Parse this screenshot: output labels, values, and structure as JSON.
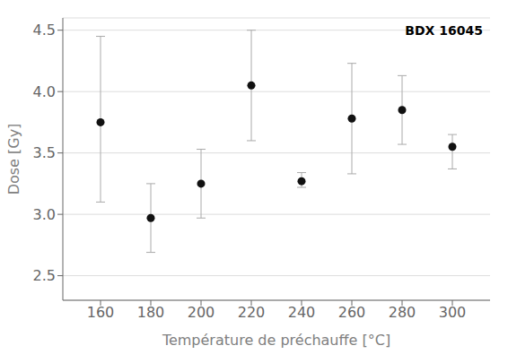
{
  "chart_data": {
    "type": "scatter",
    "x": [
      160,
      180,
      200,
      220,
      240,
      260,
      280,
      300
    ],
    "values": [
      3.75,
      2.97,
      3.25,
      4.05,
      3.27,
      3.78,
      3.85,
      3.55
    ],
    "yerr_upper": [
      0.7,
      0.28,
      0.28,
      0.45,
      0.07,
      0.45,
      0.28,
      0.1
    ],
    "yerr_lower": [
      0.65,
      0.28,
      0.28,
      0.45,
      0.05,
      0.45,
      0.28,
      0.18
    ],
    "xlabel": "Température de préchauffe [°C]",
    "ylabel": "Dose [Gy]",
    "annotation": "BDX 16045",
    "xlim": [
      145,
      315
    ],
    "ylim": [
      2.3,
      4.6
    ],
    "xticks": [
      160,
      180,
      200,
      220,
      240,
      260,
      280,
      300
    ],
    "yticks": [
      2.5,
      {
        "value": 3.0,
        "label": "3.0"
      },
      3.5,
      {
        "value": 4.0,
        "label": "4.0"
      },
      4.5
    ],
    "color": "#111111",
    "grid": true
  }
}
